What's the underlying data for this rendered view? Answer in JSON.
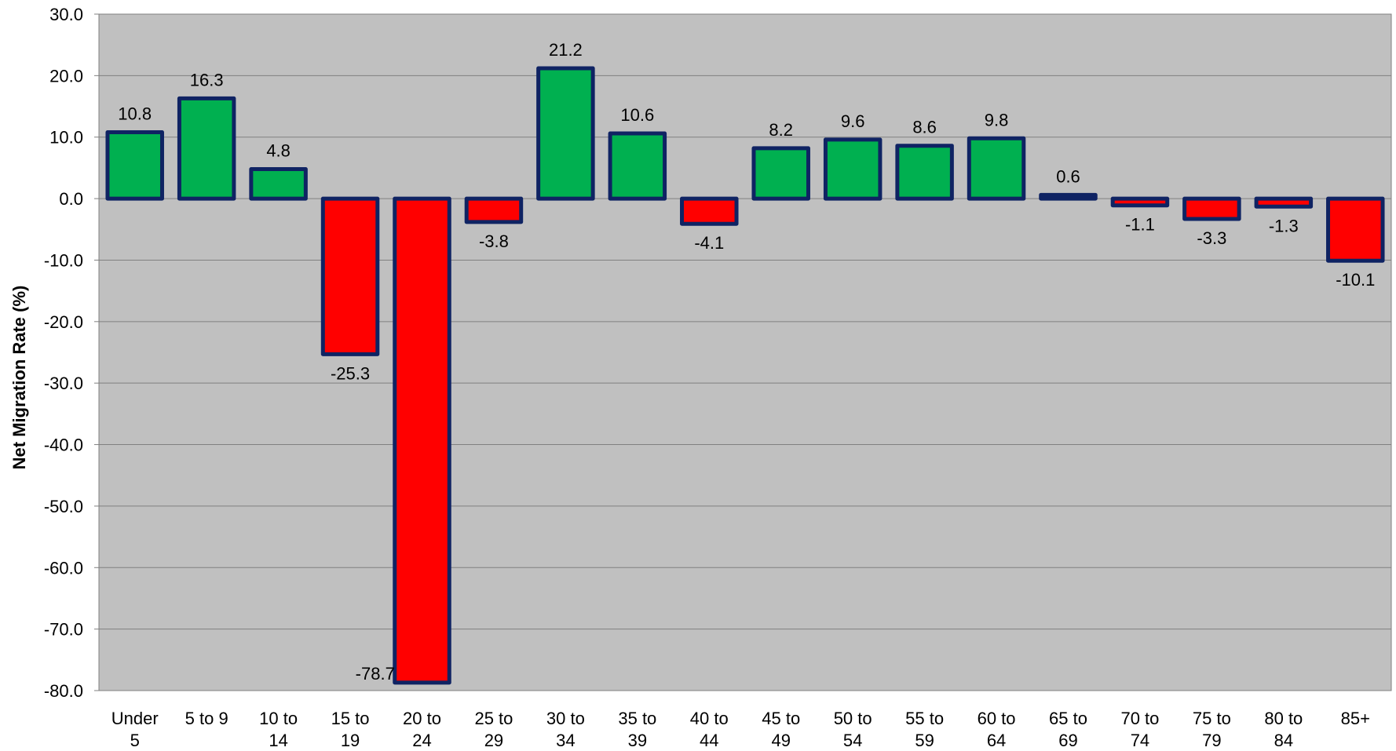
{
  "chart_data": {
    "type": "bar",
    "title": "",
    "xlabel": "",
    "ylabel": "Net Migration Rate (%)",
    "ylim": [
      -80,
      30
    ],
    "ytick_step": 10,
    "ytick_labels": [
      "30.0",
      "20.0",
      "10.0",
      "0.0",
      "-10.0",
      "-20.0",
      "-30.0",
      "-40.0",
      "-50.0",
      "-60.0",
      "-70.0",
      "-80.0"
    ],
    "grid": true,
    "legend": "none",
    "categories": [
      [
        "Under",
        "5"
      ],
      [
        "5 to 9",
        ""
      ],
      [
        "10 to",
        "14"
      ],
      [
        "15 to",
        "19"
      ],
      [
        "20 to",
        "24"
      ],
      [
        "25 to",
        "29"
      ],
      [
        "30 to",
        "34"
      ],
      [
        "35 to",
        "39"
      ],
      [
        "40 to",
        "44"
      ],
      [
        "45 to",
        "49"
      ],
      [
        "50 to",
        "54"
      ],
      [
        "55 to",
        "59"
      ],
      [
        "60 to",
        "64"
      ],
      [
        "65 to",
        "69"
      ],
      [
        "70 to",
        "74"
      ],
      [
        "75 to",
        "79"
      ],
      [
        "80 to",
        "84"
      ],
      [
        "85+",
        ""
      ]
    ],
    "values": [
      10.8,
      16.3,
      4.8,
      -25.3,
      -78.7,
      -3.8,
      21.2,
      10.6,
      -4.1,
      8.2,
      9.6,
      8.6,
      9.8,
      0.6,
      -1.1,
      -3.3,
      -1.3,
      -10.1
    ],
    "data_labels": [
      "10.8",
      "16.3",
      "4.8",
      "-25.3",
      "-78.7",
      "-3.8",
      "21.2",
      "10.6",
      "-4.1",
      "8.2",
      "9.6",
      "8.6",
      "9.8",
      "0.6",
      "-1.1",
      "-3.3",
      "-1.3",
      "-10.1"
    ],
    "colors": {
      "positive": "#00b050",
      "negative": "#ff0000",
      "bar_outline": "#0f2363",
      "plot_background": "#c0c0c0",
      "gridline": "#808080"
    }
  }
}
